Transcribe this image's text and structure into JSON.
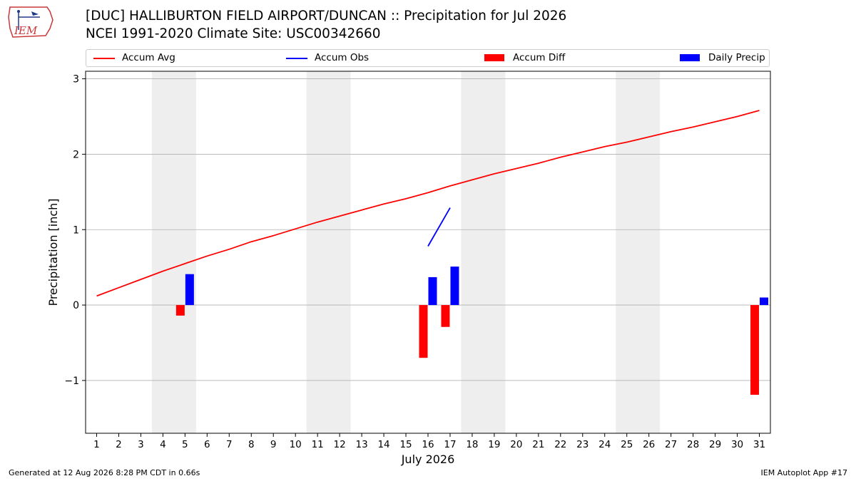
{
  "header": {
    "title_line1": "[DUC] HALLIBURTON FIELD AIRPORT/DUNCAN :: Precipitation for Jul 2026",
    "title_line2": "NCEI 1991-2020 Climate Site: USC00342660",
    "logo_text": "IEM"
  },
  "legend": [
    {
      "label": "Accum Avg",
      "kind": "line",
      "color": "#ff0000"
    },
    {
      "label": "Accum Obs",
      "kind": "line",
      "color": "#0000ff"
    },
    {
      "label": "Accum Diff",
      "kind": "patch",
      "color": "#ff0000"
    },
    {
      "label": "Daily Precip",
      "kind": "patch",
      "color": "#0000ff"
    }
  ],
  "footer": {
    "left": "Generated at 12 Aug 2026 8:28 PM CDT in 0.66s",
    "right": "IEM Autoplot App #17"
  },
  "chart_data": {
    "type": "bar",
    "xlabel": "July 2026",
    "ylabel": "Precipitation [inch]",
    "xlim": [
      0.5,
      31.5
    ],
    "ylim": [
      -1.7,
      3.1
    ],
    "yticks": [
      -1,
      0,
      1,
      2,
      3
    ],
    "ytick_labels": [
      "−1",
      "0",
      "1",
      "2",
      "3"
    ],
    "xticks": [
      1,
      2,
      3,
      4,
      5,
      6,
      7,
      8,
      9,
      10,
      11,
      12,
      13,
      14,
      15,
      16,
      17,
      18,
      19,
      20,
      21,
      22,
      23,
      24,
      25,
      26,
      27,
      28,
      29,
      30,
      31
    ],
    "grid": "horizontal",
    "legend_position": "top",
    "weekend_shading": [
      [
        3.5,
        5.5
      ],
      [
        10.5,
        12.5
      ],
      [
        17.5,
        19.5
      ],
      [
        24.5,
        26.5
      ]
    ],
    "shading_color": "#eeeeee",
    "series": [
      {
        "name": "Accum Avg",
        "type": "line",
        "color": "#ff0000",
        "x": [
          1,
          2,
          3,
          4,
          5,
          6,
          7,
          8,
          9,
          10,
          11,
          12,
          13,
          14,
          15,
          16,
          17,
          18,
          19,
          20,
          21,
          22,
          23,
          24,
          25,
          26,
          27,
          28,
          29,
          30,
          31
        ],
        "values": [
          0.12,
          0.23,
          0.34,
          0.45,
          0.55,
          0.65,
          0.74,
          0.84,
          0.92,
          1.01,
          1.1,
          1.18,
          1.26,
          1.34,
          1.41,
          1.49,
          1.58,
          1.66,
          1.74,
          1.81,
          1.88,
          1.96,
          2.03,
          2.1,
          2.16,
          2.23,
          2.3,
          2.36,
          2.43,
          2.5,
          2.58
        ]
      },
      {
        "name": "Accum Obs",
        "type": "line",
        "color": "#0000ff",
        "x": [
          16,
          17
        ],
        "values": [
          0.78,
          1.29
        ]
      },
      {
        "name": "Accum Diff",
        "type": "bar",
        "color": "#ff0000",
        "x": [
          5,
          16,
          17,
          31
        ],
        "values": [
          -0.14,
          -0.7,
          -0.29,
          -1.19
        ]
      },
      {
        "name": "Daily Precip",
        "type": "bar",
        "color": "#0000ff",
        "x": [
          5,
          16,
          17,
          31
        ],
        "values": [
          0.41,
          0.37,
          0.51,
          0.1
        ]
      }
    ]
  }
}
